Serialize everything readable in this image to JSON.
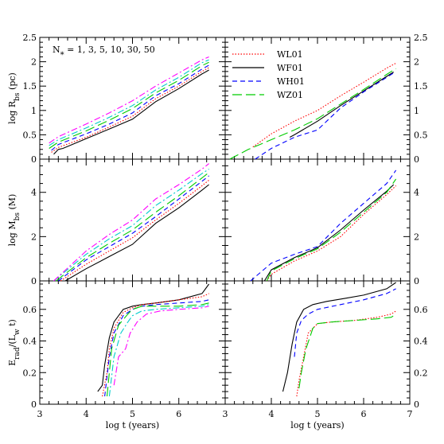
{
  "chart_data": {
    "type": "line",
    "xlabel": {
      "main": "log t ",
      "paren": "(years)"
    },
    "colors": {
      "WL01": "#ff0000",
      "WF01": "#000000",
      "WH01": "#0000ff",
      "WZ01": "#00cc00",
      "N1": "#000000",
      "N3": "#ff0000",
      "N5": "#0000ff",
      "N10": "#00cc00",
      "N30": "#00cccc",
      "N50": "#ff00ff"
    },
    "annotation": "N₁ = 1, 3, 5, 10, 30, 50",
    "annotation_parts": {
      "N": "N",
      "sub": "*",
      "rest": " = 1, 3, 5, 10, 30, 50"
    },
    "legend": [
      {
        "label": "WL01",
        "color": "#ff0000",
        "dash": "dotted"
      },
      {
        "label": "WF01",
        "color": "#000000",
        "dash": "solid"
      },
      {
        "label": "WH01",
        "color": "#0000ff",
        "dash": "dashed"
      },
      {
        "label": "WZ01",
        "color": "#00cc00",
        "dash": "longdash"
      }
    ],
    "rows": [
      {
        "ylabel": {
          "pre": "log R",
          "sub": "bs",
          "post": " (pc)"
        },
        "ylim": [
          0,
          2.5
        ],
        "yticks": [
          "0",
          "0.5",
          "1",
          "1.5",
          "2",
          "2.5"
        ],
        "ytick_values": [
          0,
          0.5,
          1,
          1.5,
          2,
          2.5
        ]
      },
      {
        "ylabel": {
          "pre": "log M",
          "sub": "bs",
          "post": " (M)"
        },
        "ylim": [
          0,
          5.5
        ],
        "yticks": [
          "0",
          "2",
          "4"
        ],
        "ytick_values": [
          0,
          2,
          4
        ]
      },
      {
        "ylabel": {
          "pre": "E",
          "sub": "rad",
          "mid": "/(L",
          "sub2": "w",
          "post": " t)"
        },
        "ylim": [
          0,
          0.78
        ],
        "yticks": [
          "0",
          "0.2",
          "0.4",
          "0.6"
        ],
        "ytick_values": [
          0,
          0.2,
          0.4,
          0.6
        ]
      }
    ],
    "xlim_left": [
      3,
      7
    ],
    "xlim_right": [
      3,
      7
    ],
    "xticks_left": [
      "3",
      "4",
      "5",
      "6"
    ],
    "xticks_right": [
      "3",
      "4",
      "5",
      "6",
      "7"
    ],
    "xtick_values_left": [
      3,
      4,
      5,
      6
    ],
    "xtick_values_right": [
      3,
      4,
      5,
      6,
      7
    ],
    "panels": {
      "r0c0": [
        {
          "name": "N=1",
          "color": "#000000",
          "dash": "solid",
          "x": [
            3.3,
            3.4,
            3.5,
            4.0,
            4.5,
            5.0,
            5.5,
            6.0,
            6.5,
            6.65
          ],
          "y": [
            0.1,
            0.2,
            0.22,
            0.42,
            0.62,
            0.82,
            1.18,
            1.45,
            1.75,
            1.83
          ]
        },
        {
          "name": "N=3",
          "color": "#ff0000",
          "dash": "dotted",
          "x": [
            3.25,
            3.4,
            4.0,
            4.5,
            5.0,
            5.5,
            6.0,
            6.5,
            6.65
          ],
          "y": [
            0.14,
            0.24,
            0.45,
            0.66,
            0.88,
            1.24,
            1.5,
            1.8,
            1.88
          ]
        },
        {
          "name": "N=5",
          "color": "#0000ff",
          "dash": "dashed",
          "x": [
            3.25,
            3.4,
            4.0,
            4.5,
            5.0,
            5.5,
            6.0,
            6.5,
            6.65
          ],
          "y": [
            0.18,
            0.3,
            0.52,
            0.72,
            0.95,
            1.3,
            1.55,
            1.85,
            1.93
          ]
        },
        {
          "name": "N=10",
          "color": "#00cc00",
          "dash": "longdash",
          "x": [
            3.2,
            3.4,
            4.0,
            4.5,
            5.0,
            5.5,
            6.0,
            6.5,
            6.65
          ],
          "y": [
            0.22,
            0.35,
            0.58,
            0.8,
            1.04,
            1.36,
            1.62,
            1.92,
            1.99
          ]
        },
        {
          "name": "N=30",
          "color": "#00cccc",
          "dash": "dashdot",
          "x": [
            3.2,
            3.4,
            4.0,
            4.5,
            5.0,
            5.5,
            6.0,
            6.5,
            6.65
          ],
          "y": [
            0.28,
            0.4,
            0.64,
            0.86,
            1.1,
            1.42,
            1.68,
            1.98,
            2.04
          ]
        },
        {
          "name": "N=50",
          "color": "#ff00ff",
          "dash": "dashdot",
          "x": [
            3.2,
            3.4,
            4.0,
            4.5,
            5.0,
            5.5,
            6.0,
            6.5,
            6.65
          ],
          "y": [
            0.33,
            0.46,
            0.72,
            0.95,
            1.2,
            1.5,
            1.77,
            2.04,
            2.1
          ]
        }
      ],
      "r0c1": [
        {
          "name": "WL01",
          "color": "#ff0000",
          "dash": "dotted",
          "x": [
            3.6,
            4.0,
            4.5,
            5.0,
            5.5,
            6.0,
            6.5,
            6.7
          ],
          "y": [
            0.25,
            0.52,
            0.78,
            1.0,
            1.3,
            1.58,
            1.87,
            1.97
          ]
        },
        {
          "name": "WF01",
          "color": "#000000",
          "dash": "solid",
          "x": [
            4.4,
            4.5,
            5.0,
            5.5,
            6.0,
            6.5,
            6.65
          ],
          "y": [
            0.45,
            0.5,
            0.78,
            1.1,
            1.4,
            1.7,
            1.79
          ]
        },
        {
          "name": "WH01",
          "color": "#0000ff",
          "dash": "dashed",
          "x": [
            3.65,
            4.0,
            4.5,
            5.0,
            5.5,
            6.0,
            6.5,
            6.65
          ],
          "y": [
            0.0,
            0.22,
            0.45,
            0.6,
            1.05,
            1.38,
            1.68,
            1.77
          ]
        },
        {
          "name": "WZ01",
          "color": "#00cc00",
          "dash": "longdash",
          "x": [
            3.1,
            3.5,
            4.0,
            4.5,
            5.0,
            5.5,
            6.0,
            6.5,
            6.7
          ],
          "y": [
            0.0,
            0.2,
            0.4,
            0.6,
            0.83,
            1.13,
            1.43,
            1.74,
            1.86
          ]
        }
      ],
      "r1c0": [
        {
          "name": "N=1",
          "color": "#000000",
          "dash": "solid",
          "x": [
            3.55,
            4.0,
            4.5,
            5.0,
            5.5,
            6.0,
            6.5,
            6.65
          ],
          "y": [
            0.0,
            0.55,
            1.1,
            1.65,
            2.6,
            3.3,
            4.1,
            4.35
          ]
        },
        {
          "name": "N=3",
          "color": "#ff0000",
          "dash": "dotted",
          "x": [
            3.45,
            4.0,
            4.5,
            5.0,
            5.5,
            6.0,
            6.5,
            6.65
          ],
          "y": [
            0.0,
            0.75,
            1.35,
            1.95,
            2.75,
            3.5,
            4.3,
            4.55
          ]
        },
        {
          "name": "N=5",
          "color": "#0000ff",
          "dash": "dashed",
          "x": [
            3.4,
            4.0,
            4.5,
            5.0,
            5.5,
            6.0,
            6.5,
            6.65
          ],
          "y": [
            0.0,
            0.95,
            1.55,
            2.15,
            2.9,
            3.7,
            4.5,
            4.75
          ]
        },
        {
          "name": "N=10",
          "color": "#00cc00",
          "dash": "longdash",
          "x": [
            3.35,
            4.0,
            4.5,
            5.0,
            5.5,
            6.0,
            6.5,
            6.65
          ],
          "y": [
            0.0,
            1.05,
            1.7,
            2.3,
            3.1,
            3.85,
            4.65,
            4.9
          ]
        },
        {
          "name": "N=30",
          "color": "#00cccc",
          "dash": "dashdot",
          "x": [
            3.3,
            4.0,
            4.5,
            5.0,
            5.5,
            6.0,
            6.5,
            6.65
          ],
          "y": [
            0.0,
            1.2,
            1.9,
            2.5,
            3.4,
            4.1,
            4.85,
            5.05
          ]
        },
        {
          "name": "N=50",
          "color": "#ff00ff",
          "dash": "dashdot",
          "x": [
            3.3,
            4.0,
            4.5,
            5.0,
            5.5,
            6.0,
            6.5,
            6.65
          ],
          "y": [
            0.0,
            1.35,
            2.1,
            2.75,
            3.7,
            4.35,
            5.05,
            5.3
          ]
        }
      ],
      "r1c1": [
        {
          "name": "WL01",
          "color": "#ff0000",
          "dash": "dotted",
          "x": [
            3.9,
            4.0,
            4.5,
            5.0,
            5.5,
            6.0,
            6.5,
            6.7
          ],
          "y": [
            0.0,
            0.3,
            0.9,
            1.35,
            2.0,
            3.0,
            3.9,
            4.3
          ]
        },
        {
          "name": "WF01",
          "color": "#000000",
          "dash": "solid",
          "x": [
            3.85,
            4.0,
            4.5,
            5.0,
            5.5,
            6.0,
            6.5,
            6.65
          ],
          "y": [
            0.0,
            0.5,
            1.05,
            1.5,
            2.3,
            3.2,
            4.05,
            4.35
          ]
        },
        {
          "name": "WH01",
          "color": "#0000ff",
          "dash": "dashed",
          "x": [
            3.55,
            4.0,
            4.5,
            5.0,
            5.5,
            6.0,
            6.5,
            6.7
          ],
          "y": [
            0.0,
            0.8,
            1.2,
            1.55,
            2.6,
            3.5,
            4.4,
            5.0
          ]
        },
        {
          "name": "WZ01",
          "color": "#00cc00",
          "dash": "longdash",
          "x": [
            3.9,
            4.0,
            4.5,
            5.0,
            5.5,
            6.0,
            6.5,
            6.7
          ],
          "y": [
            0.0,
            0.45,
            1.0,
            1.45,
            2.2,
            3.1,
            4.0,
            4.6
          ]
        }
      ],
      "r2c0": [
        {
          "name": "N=1",
          "color": "#000000",
          "dash": "solid",
          "x": [
            4.25,
            4.35,
            4.4,
            4.5,
            4.6,
            4.8,
            5.0,
            5.2,
            5.5,
            6.0,
            6.5,
            6.65
          ],
          "y": [
            0.08,
            0.12,
            0.25,
            0.42,
            0.52,
            0.6,
            0.62,
            0.63,
            0.64,
            0.66,
            0.7,
            0.76
          ]
        },
        {
          "name": "N=3",
          "color": "#ff0000",
          "dash": "dotted",
          "x": [
            4.35,
            4.45,
            4.5,
            4.6,
            4.8,
            5.0,
            5.2,
            5.5,
            6.0,
            6.5,
            6.65
          ],
          "y": [
            0.05,
            0.2,
            0.35,
            0.48,
            0.58,
            0.61,
            0.63,
            0.64,
            0.66,
            0.68,
            0.7
          ]
        },
        {
          "name": "N=5",
          "color": "#0000ff",
          "dash": "dashed",
          "x": [
            4.4,
            4.5,
            4.6,
            4.8,
            5.0,
            5.2,
            5.5,
            6.0,
            6.5,
            6.65
          ],
          "y": [
            0.05,
            0.3,
            0.45,
            0.56,
            0.6,
            0.62,
            0.63,
            0.64,
            0.65,
            0.66
          ]
        },
        {
          "name": "N=10",
          "color": "#00cc00",
          "dash": "longdash",
          "x": [
            4.45,
            4.55,
            4.7,
            4.9,
            5.0,
            5.2,
            5.5,
            6.0,
            6.5,
            6.65
          ],
          "y": [
            0.05,
            0.35,
            0.5,
            0.57,
            0.6,
            0.62,
            0.62,
            0.62,
            0.63,
            0.64
          ]
        },
        {
          "name": "N=30",
          "color": "#00cccc",
          "dash": "dashdot",
          "x": [
            4.5,
            4.6,
            4.75,
            4.9,
            5.0,
            5.2,
            5.5,
            6.0,
            6.5,
            6.65
          ],
          "y": [
            0.05,
            0.3,
            0.45,
            0.52,
            0.56,
            0.59,
            0.6,
            0.61,
            0.62,
            0.63
          ]
        },
        {
          "name": "N=50",
          "color": "#ff00ff",
          "dash": "dashdot",
          "x": [
            4.6,
            4.7,
            4.85,
            4.95,
            5.1,
            5.3,
            5.6,
            6.0,
            6.5,
            6.65
          ],
          "y": [
            0.12,
            0.3,
            0.35,
            0.45,
            0.52,
            0.57,
            0.59,
            0.6,
            0.61,
            0.62
          ]
        }
      ],
      "r2c1": [
        {
          "name": "WL01",
          "color": "#ff0000",
          "dash": "dotted",
          "x": [
            4.55,
            4.6,
            4.7,
            4.8,
            5.0,
            5.3,
            5.8,
            6.3,
            6.6,
            6.7
          ],
          "y": [
            0.05,
            0.15,
            0.3,
            0.45,
            0.51,
            0.52,
            0.53,
            0.55,
            0.57,
            0.59
          ]
        },
        {
          "name": "WF01",
          "color": "#000000",
          "dash": "solid",
          "x": [
            4.25,
            4.35,
            4.45,
            4.55,
            4.7,
            4.9,
            5.2,
            5.6,
            6.0,
            6.5,
            6.7
          ],
          "y": [
            0.08,
            0.2,
            0.38,
            0.52,
            0.6,
            0.63,
            0.65,
            0.67,
            0.69,
            0.73,
            0.77
          ]
        },
        {
          "name": "WH01",
          "color": "#0000ff",
          "dash": "dashed",
          "x": [
            4.5,
            4.55,
            4.65,
            4.8,
            5.0,
            5.5,
            6.0,
            6.5,
            6.7
          ],
          "y": [
            0.3,
            0.45,
            0.53,
            0.57,
            0.6,
            0.63,
            0.66,
            0.7,
            0.73
          ]
        },
        {
          "name": "WZ01",
          "color": "#00cc00",
          "dash": "longdash",
          "x": [
            4.6,
            4.65,
            4.75,
            4.9,
            5.0,
            5.3,
            5.8,
            6.3,
            6.6,
            6.7
          ],
          "y": [
            0.1,
            0.2,
            0.35,
            0.48,
            0.51,
            0.52,
            0.53,
            0.54,
            0.55,
            0.57
          ]
        }
      ]
    }
  }
}
